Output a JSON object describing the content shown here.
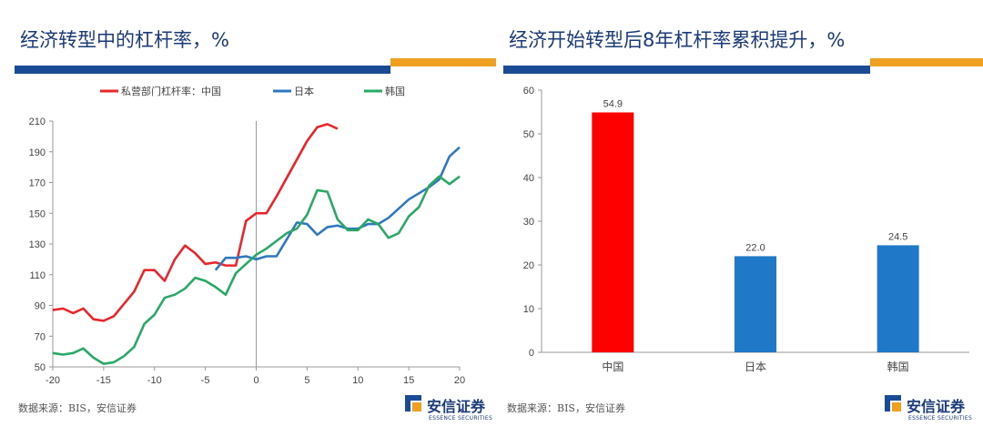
{
  "colors": {
    "brand_blue": "#1b4b94",
    "accent_orange": "#f0a020",
    "china_red": "#e8262b",
    "japan_blue": "#2f78c0",
    "korea_green": "#2aa866",
    "bar_red": "#ff0000",
    "bar_blue": "#1f78c8"
  },
  "left": {
    "title": "经济转型中的杠杆率，%",
    "source": "数据来源：BIS，安信证券",
    "logo": {
      "cn": "安信证券",
      "en": "ESSENCE SECURITIES"
    }
  },
  "right": {
    "title": "经济开始转型后8年杠杆率累积提升，%",
    "source": "数据来源：BIS，安信证券",
    "logo": {
      "cn": "安信证券",
      "en": "ESSENCE SECURITIES"
    }
  },
  "chart_data": [
    {
      "type": "line",
      "legend_position": "top",
      "xlim": [
        -20,
        20
      ],
      "ylim": [
        50,
        210
      ],
      "xticks": [
        -20,
        -15,
        -10,
        -5,
        0,
        5,
        10,
        15,
        20
      ],
      "yticks": [
        50,
        70,
        90,
        110,
        130,
        150,
        170,
        190,
        210
      ],
      "grid": false,
      "series": [
        {
          "name": "私营部门杠杆率：中国",
          "color": "#e8262b",
          "x": [
            -20,
            -19,
            -18,
            -17,
            -16,
            -15,
            -14,
            -13,
            -12,
            -11,
            -10,
            -9,
            -8,
            -7,
            -6,
            -5,
            -4,
            -3,
            -2,
            -1,
            0,
            1,
            2,
            3,
            4,
            5,
            6,
            7,
            8
          ],
          "y": [
            87,
            88,
            85,
            88,
            81,
            80,
            83,
            91,
            99,
            113,
            113,
            106,
            120,
            129,
            124,
            117,
            118,
            116,
            116,
            145,
            150,
            150,
            161,
            173,
            185,
            197,
            206,
            208,
            205
          ]
        },
        {
          "name": "日本",
          "color": "#2f78c0",
          "x": [
            -4,
            -3,
            -2,
            -1,
            0,
            1,
            2,
            3,
            4,
            5,
            6,
            7,
            8,
            9,
            10,
            11,
            12,
            13,
            14,
            15,
            16,
            17,
            18,
            19,
            20
          ],
          "y": [
            113,
            121,
            121,
            122,
            120,
            122,
            122,
            133,
            144,
            143,
            136,
            141,
            142,
            140,
            140,
            143,
            143,
            147,
            153,
            159,
            163,
            167,
            172,
            187,
            193
          ]
        },
        {
          "name": "韩国",
          "color": "#2aa866",
          "x": [
            -20,
            -19,
            -18,
            -17,
            -16,
            -15,
            -14,
            -13,
            -12,
            -11,
            -10,
            -9,
            -8,
            -7,
            -6,
            -5,
            -4,
            -3,
            -2,
            -1,
            0,
            1,
            2,
            3,
            4,
            5,
            6,
            7,
            8,
            9,
            10,
            11,
            12,
            13,
            14,
            15,
            16,
            17,
            18,
            19,
            20
          ],
          "y": [
            59,
            58,
            59,
            62,
            56,
            52,
            53,
            57,
            63,
            78,
            84,
            95,
            97,
            101,
            108,
            106,
            102,
            97,
            111,
            117,
            123,
            127,
            132,
            137,
            140,
            149,
            165,
            164,
            146,
            139,
            139,
            146,
            143,
            134,
            137,
            148,
            154,
            168,
            174,
            169,
            174
          ]
        }
      ]
    },
    {
      "type": "bar",
      "categories": [
        "中国",
        "日本",
        "韩国"
      ],
      "values": [
        54.9,
        22.0,
        24.5
      ],
      "value_labels": [
        "54.9",
        "22.0",
        "24.5"
      ],
      "colors": [
        "#ff0000",
        "#1f78c8",
        "#1f78c8"
      ],
      "ylim": [
        0,
        60
      ],
      "yticks": [
        0,
        10,
        20,
        30,
        40,
        50,
        60
      ],
      "grid": false
    }
  ]
}
